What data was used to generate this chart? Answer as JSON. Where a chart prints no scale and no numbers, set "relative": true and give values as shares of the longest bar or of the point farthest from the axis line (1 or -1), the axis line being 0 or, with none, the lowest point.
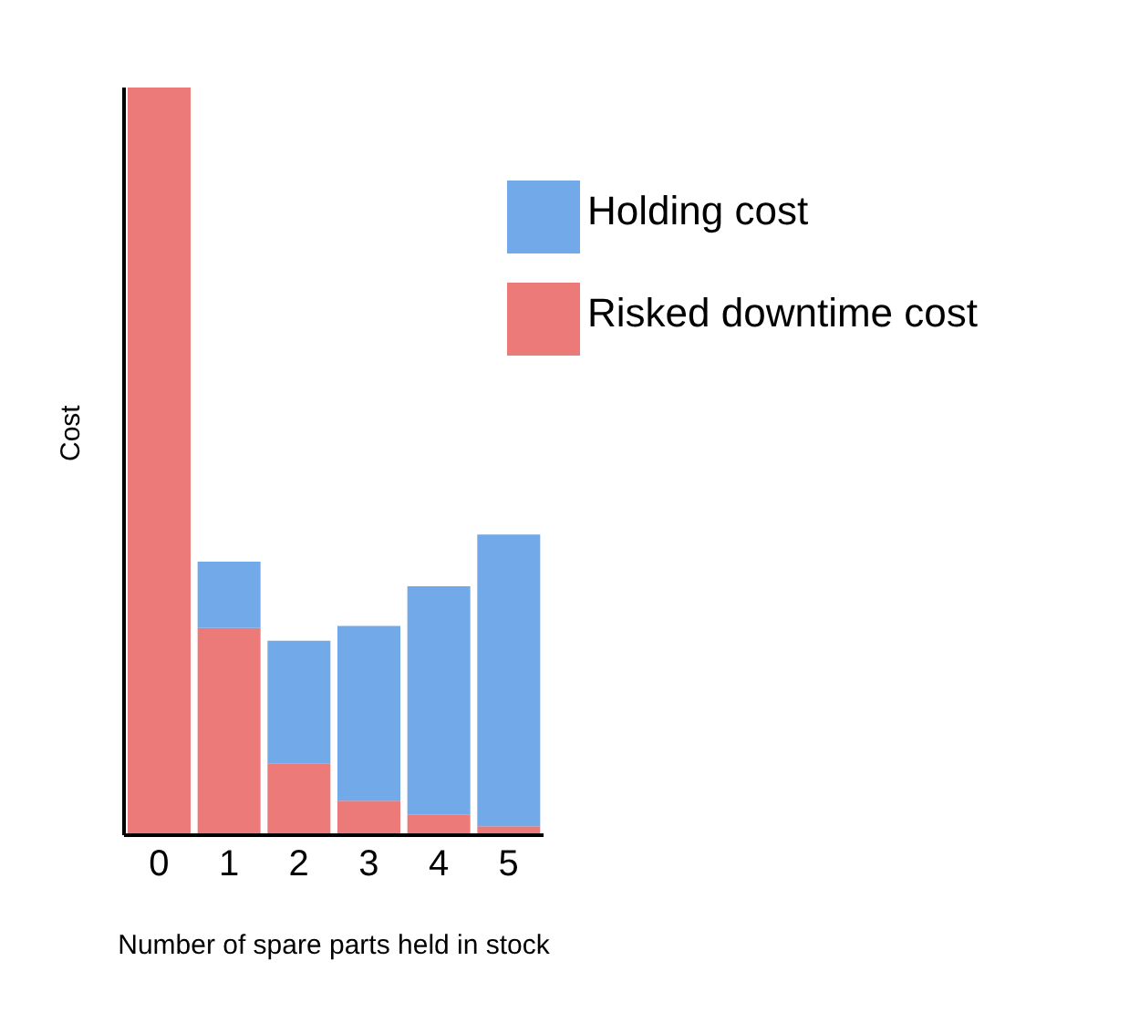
{
  "chart_data": {
    "type": "bar",
    "xlabel": "Number of spare parts held in stock",
    "ylabel": "Cost",
    "categories": [
      "0",
      "1",
      "2",
      "3",
      "4",
      "5"
    ],
    "stacked": true,
    "relative": true,
    "legend": "top right",
    "grid": false,
    "series": [
      {
        "name": "Risked downtime cost",
        "color": "#ec7a78",
        "values": [
          1,
          0.277,
          0.096,
          0.046,
          0.027,
          0.012
        ]
      },
      {
        "name": "Holding cost",
        "color": "#72a9e8",
        "values": [
          0,
          0.089,
          0.164,
          0.234,
          0.306,
          0.39
        ]
      }
    ]
  }
}
